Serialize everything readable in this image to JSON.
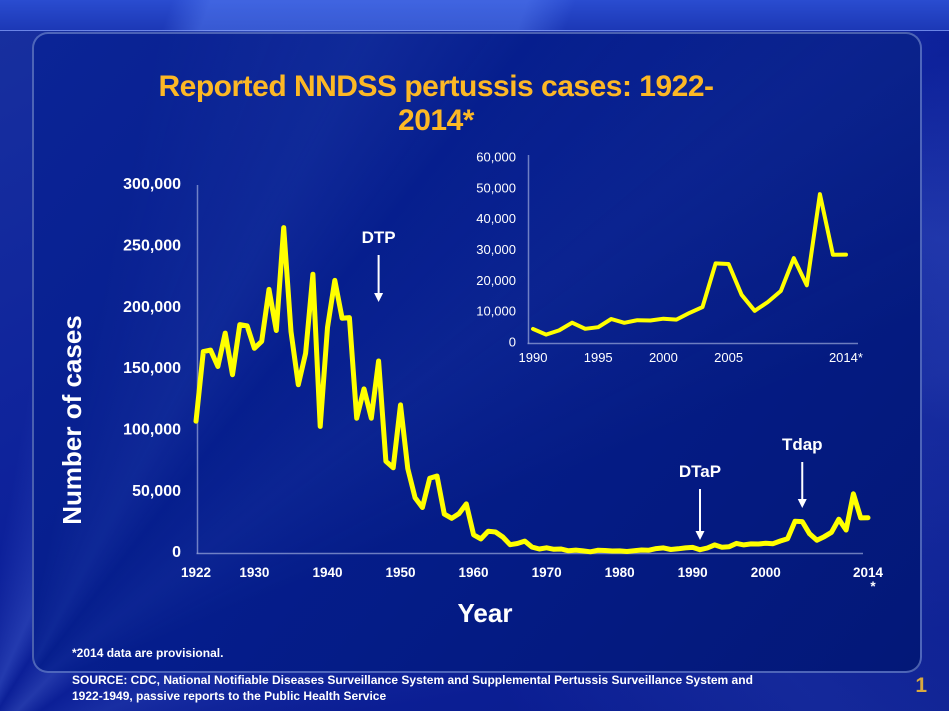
{
  "slide": {
    "title": "Reported NNDSS pertussis cases: 1922-2014*",
    "footnote": "*2014 data are provisional.",
    "source_line1": "SOURCE: CDC, National Notifiable Diseases Surveillance System and Supplemental Pertussis Surveillance System and",
    "source_line2": "1922-1949, passive reports to the Public Health Service",
    "page_number": "1"
  },
  "colors": {
    "background": "#0A1F90",
    "title_gold": "#FDB825",
    "page_gold": "#D9A93F",
    "text_white": "#FFFFFF",
    "axis_line": "rgba(195,205,240,0.55)",
    "line_yellow": "#FFFF00"
  },
  "chart_data": [
    {
      "id": "main",
      "type": "line",
      "title": "Reported NNDSS pertussis cases: 1922-2014*",
      "xlabel": "Year",
      "ylabel": "Number of cases",
      "grid": false,
      "legend": "none",
      "line_color": "#FFFF00",
      "ylim": [
        0,
        300000
      ],
      "xlim": [
        1922,
        2014
      ],
      "ytick_values": [
        0,
        50000,
        100000,
        150000,
        200000,
        250000,
        300000
      ],
      "ytick_labels": [
        "0",
        "50,000",
        "100,000",
        "150,000",
        "200,000",
        "250,000",
        "300,000"
      ],
      "xtick_values": [
        1922,
        1930,
        1940,
        1950,
        1960,
        1970,
        1980,
        1990,
        2000,
        2014
      ],
      "xtick_labels": [
        "1922",
        "1930",
        "1940",
        "1950",
        "1960",
        "1970",
        "1980",
        "1990",
        "2000",
        "2014"
      ],
      "last_xtick_marker": "*",
      "annotations": [
        {
          "label": "DTP",
          "year": 1947
        },
        {
          "label": "DTaP",
          "year": 1991
        },
        {
          "label": "Tdap",
          "year": 2005
        }
      ],
      "years": [
        1922,
        1923,
        1924,
        1925,
        1926,
        1927,
        1928,
        1929,
        1930,
        1931,
        1932,
        1933,
        1934,
        1935,
        1936,
        1937,
        1938,
        1939,
        1940,
        1941,
        1942,
        1943,
        1944,
        1945,
        1946,
        1947,
        1948,
        1949,
        1950,
        1951,
        1952,
        1953,
        1954,
        1955,
        1956,
        1957,
        1958,
        1959,
        1960,
        1961,
        1962,
        1963,
        1964,
        1965,
        1966,
        1967,
        1968,
        1969,
        1970,
        1971,
        1972,
        1973,
        1974,
        1975,
        1976,
        1977,
        1978,
        1979,
        1980,
        1981,
        1982,
        1983,
        1984,
        1985,
        1986,
        1987,
        1988,
        1989,
        1990,
        1991,
        1992,
        1993,
        1994,
        1995,
        1996,
        1997,
        1998,
        1999,
        2000,
        2001,
        2002,
        2003,
        2004,
        2005,
        2006,
        2007,
        2008,
        2009,
        2010,
        2011,
        2012,
        2013,
        2014
      ],
      "values": [
        107473,
        164191,
        165418,
        152003,
        179228,
        145316,
        186173,
        185243,
        166914,
        172559,
        214870,
        181411,
        265269,
        180518,
        137209,
        162790,
        227319,
        103188,
        183866,
        222202,
        191383,
        191890,
        109873,
        133792,
        109860,
        156517,
        74715,
        69479,
        120718,
        68687,
        45030,
        37129,
        60886,
        62786,
        31732,
        28295,
        32148,
        40005,
        14809,
        11468,
        17749,
        17135,
        13005,
        6799,
        7717,
        9718,
        4810,
        3285,
        4249,
        3036,
        3287,
        1759,
        2402,
        1738,
        1010,
        2177,
        2063,
        1623,
        1730,
        1248,
        1895,
        2463,
        2276,
        3589,
        4195,
        2823,
        3450,
        4157,
        4570,
        2719,
        4083,
        6586,
        4617,
        5137,
        7796,
        6564,
        7405,
        7298,
        7867,
        7580,
        9771,
        11647,
        25827,
        25616,
        15632,
        10454,
        13278,
        16858,
        27550,
        18719,
        48277,
        28639,
        28660
      ]
    },
    {
      "id": "inset",
      "type": "line",
      "title": "",
      "xlabel": "",
      "ylabel": "",
      "grid": false,
      "legend": "none",
      "line_color": "#FFFF00",
      "ylim": [
        0,
        60000
      ],
      "xlim": [
        1990,
        2014
      ],
      "ytick_values": [
        0,
        10000,
        20000,
        30000,
        40000,
        50000,
        60000
      ],
      "ytick_labels": [
        "0",
        "10,000",
        "20,000",
        "30,000",
        "40,000",
        "50,000",
        "60,000"
      ],
      "xtick_values": [
        1990,
        1995,
        2000,
        2005,
        2014
      ],
      "xtick_labels": [
        "1990",
        "1995",
        "2000",
        "2005",
        "2014*"
      ],
      "years": [
        1990,
        1991,
        1992,
        1993,
        1994,
        1995,
        1996,
        1997,
        1998,
        1999,
        2000,
        2001,
        2002,
        2003,
        2004,
        2005,
        2006,
        2007,
        2008,
        2009,
        2010,
        2011,
        2012,
        2013,
        2014
      ],
      "values": [
        4570,
        2719,
        4083,
        6586,
        4617,
        5137,
        7796,
        6564,
        7405,
        7298,
        7867,
        7580,
        9771,
        11647,
        25827,
        25616,
        15632,
        10454,
        13278,
        16858,
        27550,
        18719,
        48277,
        28639,
        28660
      ]
    }
  ]
}
